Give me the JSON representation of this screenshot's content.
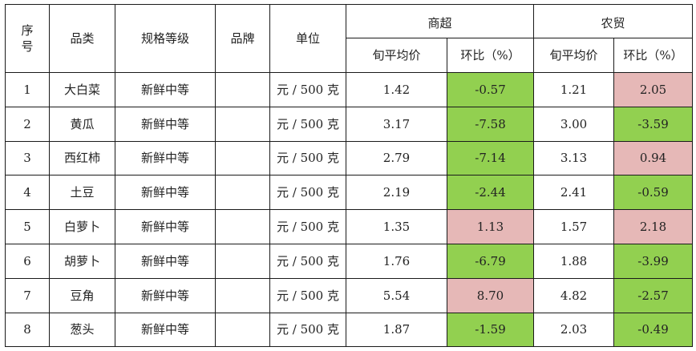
{
  "headers": {
    "seq": "序号",
    "category": "品类",
    "spec": "规格等级",
    "brand": "品牌",
    "unit": "单位",
    "supermarket": "商超",
    "market": "农贸",
    "avg_price": "旬平均价",
    "change": "环比（%）"
  },
  "colors": {
    "increase": "#e6b8b7",
    "decrease": "#92d050"
  },
  "rows": [
    {
      "no": "1",
      "name": "大白菜",
      "spec": "新鲜中等",
      "brand": "",
      "unit": "元 / 500 克",
      "sm_price": "1.42",
      "sm_change": "-0.57",
      "mk_price": "1.21",
      "mk_change": "2.05"
    },
    {
      "no": "2",
      "name": "黄瓜",
      "spec": "新鲜中等",
      "brand": "",
      "unit": "元 / 500 克",
      "sm_price": "3.17",
      "sm_change": "-7.58",
      "mk_price": "3.00",
      "mk_change": "-3.59"
    },
    {
      "no": "3",
      "name": "西红柿",
      "spec": "新鲜中等",
      "brand": "",
      "unit": "元 / 500 克",
      "sm_price": "2.79",
      "sm_change": "-7.14",
      "mk_price": "3.13",
      "mk_change": "0.94"
    },
    {
      "no": "4",
      "name": "土豆",
      "spec": "新鲜中等",
      "brand": "",
      "unit": "元 / 500 克",
      "sm_price": "2.19",
      "sm_change": "-2.44",
      "mk_price": "2.41",
      "mk_change": "-0.59"
    },
    {
      "no": "5",
      "name": "白萝卜",
      "spec": "新鲜中等",
      "brand": "",
      "unit": "元 / 500 克",
      "sm_price": "1.35",
      "sm_change": "1.13",
      "mk_price": "1.57",
      "mk_change": "2.18"
    },
    {
      "no": "6",
      "name": "胡萝卜",
      "spec": "新鲜中等",
      "brand": "",
      "unit": "元 / 500 克",
      "sm_price": "1.76",
      "sm_change": "-6.79",
      "mk_price": "1.88",
      "mk_change": "-3.99"
    },
    {
      "no": "7",
      "name": "豆角",
      "spec": "新鲜中等",
      "brand": "",
      "unit": "元 / 500 克",
      "sm_price": "5.54",
      "sm_change": "8.70",
      "mk_price": "4.82",
      "mk_change": "-2.57"
    },
    {
      "no": "8",
      "name": "葱头",
      "spec": "新鲜中等",
      "brand": "",
      "unit": "元 / 500 克",
      "sm_price": "1.87",
      "sm_change": "-1.59",
      "mk_price": "2.03",
      "mk_change": "-0.49"
    }
  ]
}
